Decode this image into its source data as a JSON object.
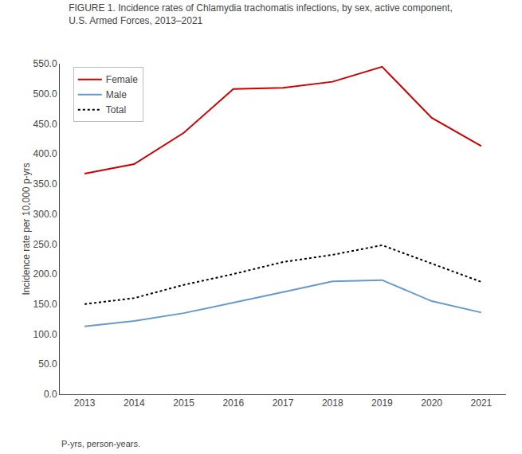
{
  "chart_data": {
    "type": "line",
    "title": "FIGURE 1. Incidence rates of Chlamydia trachomatis infections, by sex, active component,\nU.S. Armed Forces, 2013–2021",
    "y_label": "Incidence rate per 10,000 p-yrs",
    "annotations": [
      "P-yrs, person-years."
    ],
    "x": [
      2013,
      2014,
      2015,
      2016,
      2017,
      2018,
      2019,
      2020,
      2021
    ],
    "series": [
      {
        "name": "Female",
        "color": "#cc0000",
        "line_style": "solid",
        "values": [
          367,
          383,
          435,
          508,
          510,
          520,
          545,
          460,
          413
        ]
      },
      {
        "name": "Male",
        "color": "#6699cc",
        "line_style": "solid",
        "values": [
          113,
          122,
          135,
          152,
          170,
          188,
          190,
          155,
          136
        ]
      },
      {
        "name": "Total",
        "color": "#000000",
        "line_style": "dotted",
        "values": [
          150,
          160,
          182,
          200,
          220,
          232,
          248,
          218,
          187
        ]
      }
    ],
    "xlim": [
      2012.5,
      2021.5
    ],
    "xticks": [
      2013,
      2014,
      2015,
      2016,
      2017,
      2018,
      2019,
      2020,
      2021
    ],
    "ylim": [
      0,
      550
    ],
    "yticks": [
      {
        "value": 0,
        "label": "0.0"
      },
      {
        "value": 50,
        "label": "50.0"
      },
      {
        "value": 100,
        "label": "100.0"
      },
      {
        "value": 150,
        "label": "150.0"
      },
      {
        "value": 200,
        "label": "200.0"
      },
      {
        "value": 250,
        "label": "250.0"
      },
      {
        "value": 300,
        "label": "300.0"
      },
      {
        "value": 350,
        "label": "350.0"
      },
      {
        "value": 400,
        "label": "400.0"
      },
      {
        "value": 450,
        "label": "450.0"
      },
      {
        "value": 500,
        "label": "500.0"
      },
      {
        "value": 550,
        "label": "550.0"
      }
    ],
    "grid": false,
    "legend": "upper left"
  }
}
